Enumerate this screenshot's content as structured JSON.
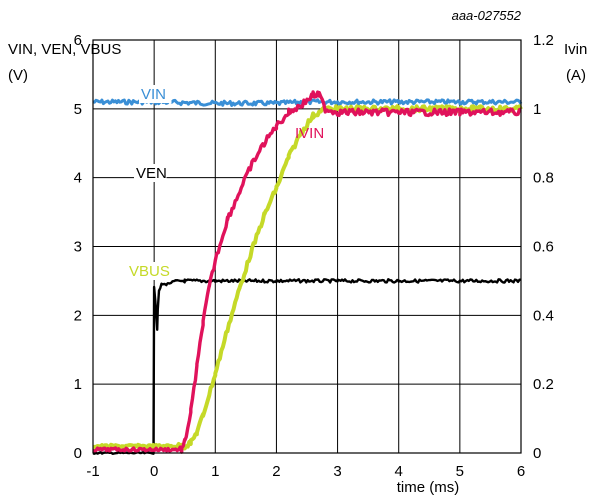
{
  "figure_id": "aaa-027552",
  "chart_data": {
    "type": "line",
    "title": "",
    "xlabel": "time (ms)",
    "ylabel_left": "VIN, VEN, VBUS",
    "ylabel_left_unit": "(V)",
    "ylabel_right": "Ivin",
    "ylabel_right_unit": "(A)",
    "xlim": [
      -1,
      6
    ],
    "ylim_left": [
      0,
      6
    ],
    "ylim_right": [
      0,
      1.2
    ],
    "x_ticks": [
      "-1",
      "0",
      "1",
      "2",
      "3",
      "4",
      "5",
      "6"
    ],
    "y_ticks_left": [
      "0",
      "1",
      "2",
      "3",
      "4",
      "5",
      "6"
    ],
    "y_ticks_right": [
      "0",
      "0.2",
      "0.4",
      "0.6",
      "0.8",
      "1",
      "1.2"
    ],
    "grid": true,
    "series": [
      {
        "name": "VIN",
        "axis": "left",
        "color": "#3a8fd6",
        "x": [
          -1,
          0,
          1,
          2,
          2.5,
          3,
          4,
          5,
          6
        ],
        "y": [
          5.1,
          5.1,
          5.08,
          5.08,
          5.1,
          5.1,
          5.1,
          5.1,
          5.1
        ]
      },
      {
        "name": "VEN",
        "axis": "left",
        "color": "#000000",
        "x": [
          -1,
          -0.01,
          0,
          0.02,
          0.05,
          0.06,
          0.08,
          0.12,
          0.2,
          0.35,
          0.5,
          1,
          2,
          3,
          4,
          5,
          6
        ],
        "y": [
          0,
          0,
          2.4,
          2.2,
          1.8,
          2.1,
          2.35,
          2.45,
          2.45,
          2.5,
          2.5,
          2.5,
          2.5,
          2.5,
          2.5,
          2.5,
          2.5
        ]
      },
      {
        "name": "IVIN",
        "axis": "right",
        "color": "#e0125b",
        "x": [
          -1,
          0.45,
          0.5,
          0.6,
          0.7,
          0.8,
          0.9,
          1.0,
          1.2,
          1.4,
          1.6,
          1.8,
          2.0,
          2.2,
          2.4,
          2.6,
          2.7,
          2.8,
          3.0,
          4,
          5,
          6
        ],
        "y": [
          0.01,
          0.01,
          0.03,
          0.12,
          0.25,
          0.38,
          0.48,
          0.56,
          0.68,
          0.76,
          0.84,
          0.9,
          0.95,
          0.99,
          1.01,
          1.04,
          1.04,
          1.0,
          0.99,
          0.99,
          0.99,
          0.99
        ]
      },
      {
        "name": "VBUS",
        "axis": "left",
        "color": "#c5d928",
        "x": [
          -1,
          0.5,
          0.6,
          0.7,
          0.8,
          1.0,
          1.2,
          1.4,
          1.6,
          1.8,
          2.0,
          2.2,
          2.4,
          2.6,
          2.8,
          3.0,
          4,
          5,
          6
        ],
        "y": [
          0.1,
          0.1,
          0.15,
          0.3,
          0.55,
          1.15,
          1.8,
          2.4,
          2.95,
          3.45,
          3.85,
          4.3,
          4.65,
          4.9,
          5.0,
          5.0,
          5.0,
          5.0,
          5.0
        ]
      }
    ],
    "annotations": [
      "VIN",
      "VEN",
      "IVIN",
      "VBUS"
    ]
  }
}
